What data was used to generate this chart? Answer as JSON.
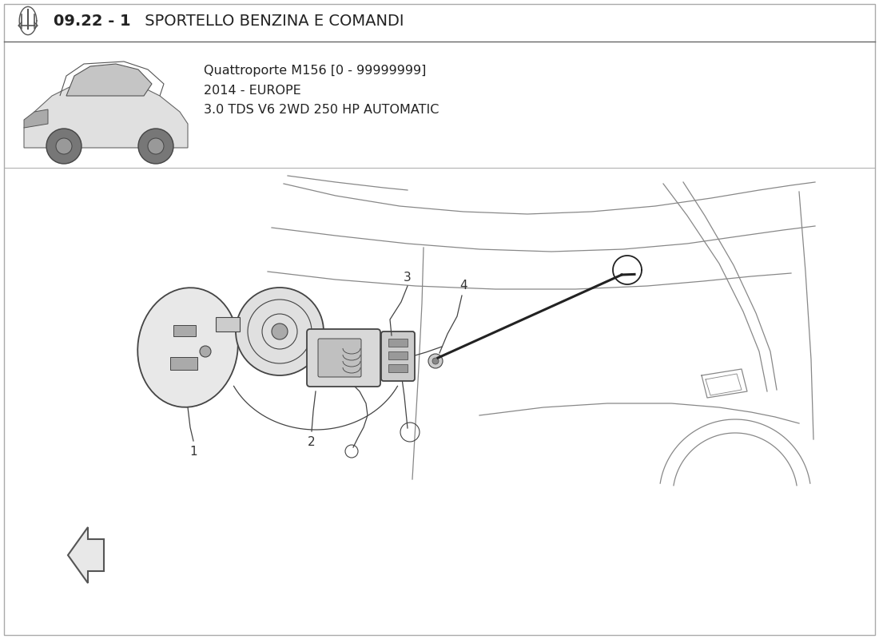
{
  "title_bold": "09.22 - 1",
  "title_normal": " SPORTELLO BENZINA E COMANDI",
  "subtitle_line1": "Quattroporte M156 [0 - 99999999]",
  "subtitle_line2": "2014 - EUROPE",
  "subtitle_line3": "3.0 TDS V6 2WD 250 HP AUTOMATIC",
  "bg_color": "#ffffff",
  "line_color": "#444444",
  "body_line_color": "#888888"
}
